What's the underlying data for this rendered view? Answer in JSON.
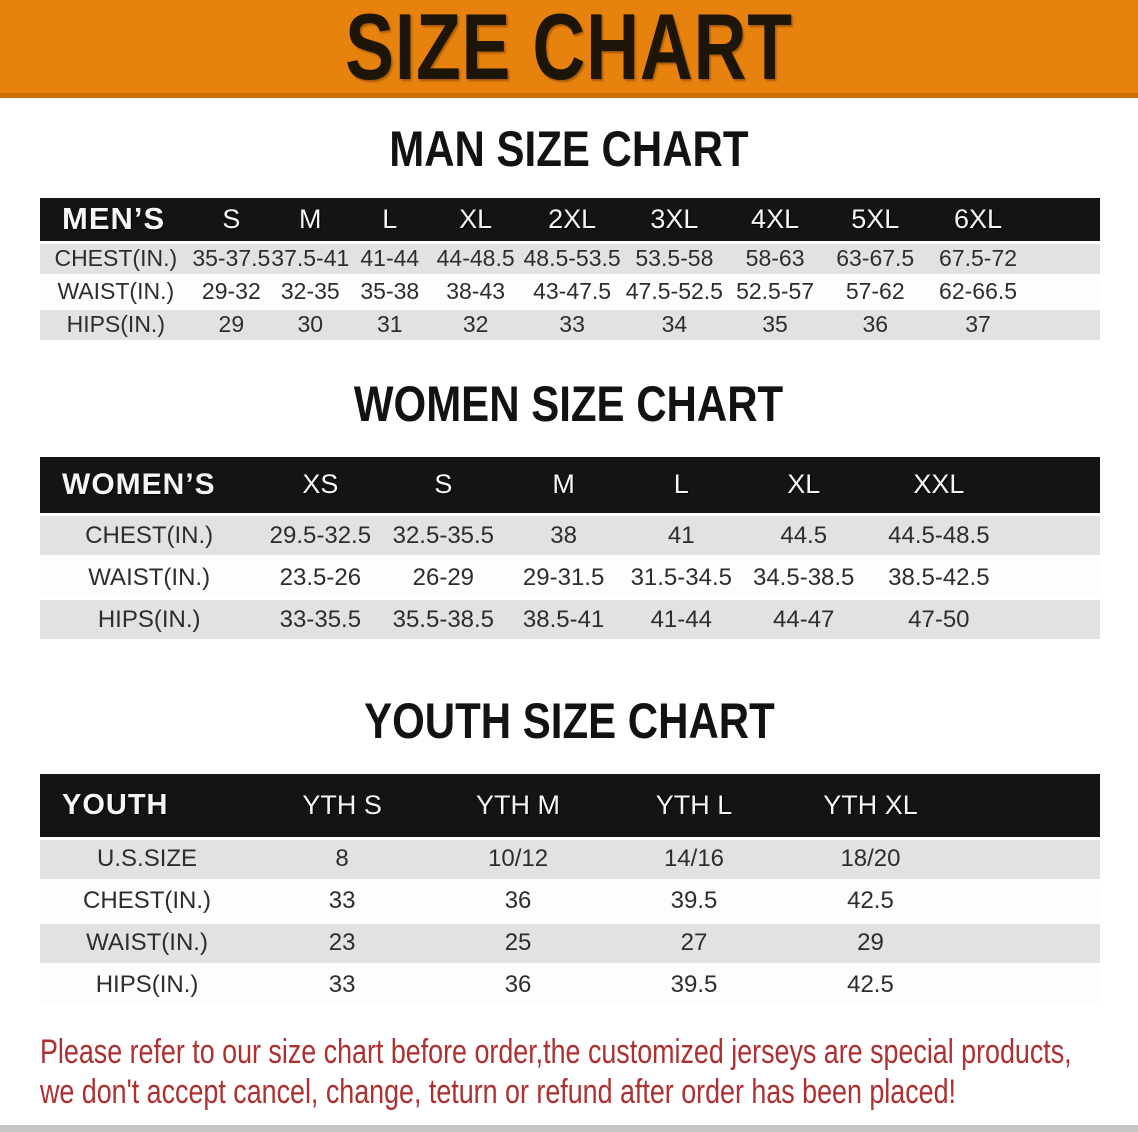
{
  "banner": {
    "title": "SIZE CHART"
  },
  "sections": [
    {
      "title": "MAN SIZE CHART",
      "group_label": "MEN’S",
      "columns": [
        "S",
        "M",
        "L",
        "XL",
        "2XL",
        "3XL",
        "4XL",
        "5XL",
        "6XL"
      ],
      "rows": [
        {
          "label": "CHEST(IN.)",
          "values": [
            "35-37.5",
            "37.5-41",
            "41-44",
            "44-48.5",
            "48.5-53.5",
            "53.5-58",
            "58-63",
            "63-67.5",
            "67.5-72"
          ]
        },
        {
          "label": "WAIST(IN.)",
          "values": [
            "29-32",
            "32-35",
            "35-38",
            "38-43",
            "43-47.5",
            "47.5-52.5",
            "52.5-57",
            "57-62",
            "62-66.5"
          ]
        },
        {
          "label": "HIPS(IN.)",
          "values": [
            "29",
            "30",
            "31",
            "32",
            "33",
            "34",
            "35",
            "36",
            "37"
          ]
        }
      ]
    },
    {
      "title": "WOMEN SIZE CHART",
      "group_label": "WOMEN’S",
      "columns": [
        "XS",
        "S",
        "M",
        "L",
        "XL",
        "XXL"
      ],
      "rows": [
        {
          "label": "CHEST(IN.)",
          "values": [
            "29.5-32.5",
            "32.5-35.5",
            "38",
            "41",
            "44.5",
            "44.5-48.5"
          ]
        },
        {
          "label": "WAIST(IN.)",
          "values": [
            "23.5-26",
            "26-29",
            "29-31.5",
            "31.5-34.5",
            "34.5-38.5",
            "38.5-42.5"
          ]
        },
        {
          "label": "HIPS(IN.)",
          "values": [
            "33-35.5",
            "35.5-38.5",
            "38.5-41",
            "41-44",
            "44-47",
            "47-50"
          ]
        }
      ]
    },
    {
      "title": "YOUTH SIZE CHART",
      "group_label": "YOUTH",
      "columns": [
        "YTH S",
        "YTH M",
        "YTH L",
        "YTH XL"
      ],
      "rows": [
        {
          "label": "U.S.SIZE",
          "values": [
            "8",
            "10/12",
            "14/16",
            "18/20"
          ]
        },
        {
          "label": "CHEST(IN.)",
          "values": [
            "33",
            "36",
            "39.5",
            "42.5"
          ]
        },
        {
          "label": "WAIST(IN.)",
          "values": [
            "23",
            "25",
            "27",
            "29"
          ]
        },
        {
          "label": "HIPS(IN.)",
          "values": [
            "33",
            "36",
            "39.5",
            "42.5"
          ]
        }
      ]
    }
  ],
  "footer": {
    "line1": "Please refer to our size chart before order,the customized jerseys are special products,",
    "line2": "we don't accept cancel, change, teturn or refund after order has been placed!"
  },
  "colors": {
    "banner_orange": "#E8820E",
    "header_black": "#141414",
    "row_gray": "#E2E2E2",
    "footer_red": "#AE3030"
  }
}
